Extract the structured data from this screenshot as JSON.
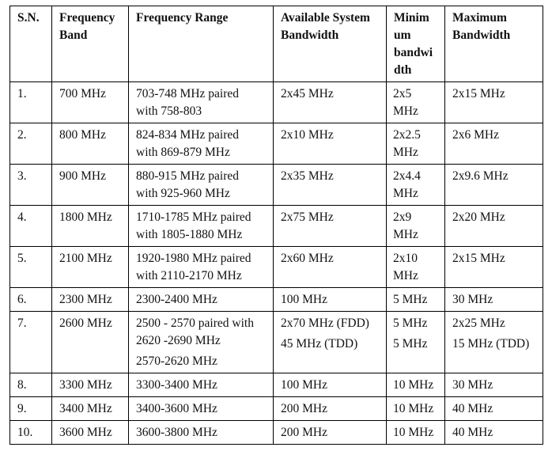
{
  "table": {
    "headers": [
      "S.N.",
      "Frequency Band",
      "Frequency Range",
      "Available System Bandwidth",
      "Minimum bandwidth",
      "Maximum Bandwidth"
    ],
    "header_lines": {
      "sn": [
        "S.N."
      ],
      "band": [
        "Frequency",
        "Band"
      ],
      "range": [
        "Frequency Range"
      ],
      "available": [
        "Available System",
        "Bandwidth"
      ],
      "minimum": [
        "Minim",
        "um",
        "bandwi",
        "dth"
      ],
      "maximum": [
        "Maximum",
        "Bandwidth"
      ]
    },
    "rows": [
      {
        "sn": "1.",
        "band": "700 MHz",
        "range": [
          "703-748 MHz paired",
          "with 758-803"
        ],
        "available": [
          "2x45 MHz"
        ],
        "minimum": [
          "2x5",
          "MHz"
        ],
        "maximum": [
          "2x15 MHz"
        ]
      },
      {
        "sn": "2.",
        "band": "800 MHz",
        "range": [
          "824-834 MHz paired",
          "with 869-879 MHz"
        ],
        "available": [
          "2x10 MHz"
        ],
        "minimum": [
          "2x2.5",
          "MHz"
        ],
        "maximum": [
          "2x6 MHz"
        ]
      },
      {
        "sn": "3.",
        "band": "900 MHz",
        "range": [
          "880-915 MHz paired",
          "with 925-960 MHz"
        ],
        "available": [
          "2x35 MHz"
        ],
        "minimum": [
          "2x4.4",
          "MHz"
        ],
        "maximum": [
          "2x9.6 MHz"
        ]
      },
      {
        "sn": "4.",
        "band": "1800 MHz",
        "range": [
          "1710-1785 MHz paired",
          "with 1805-1880 MHz"
        ],
        "available": [
          "2x75 MHz"
        ],
        "minimum": [
          "2x9",
          "MHz"
        ],
        "maximum": [
          "2x20 MHz"
        ]
      },
      {
        "sn": "5.",
        "band": "2100 MHz",
        "range": [
          "1920-1980 MHz paired",
          "with 2110-2170 MHz"
        ],
        "available": [
          "2x60 MHz"
        ],
        "minimum": [
          "2x10",
          "MHz"
        ],
        "maximum": [
          "2x15 MHz"
        ]
      },
      {
        "sn": "6.",
        "band": "2300 MHz",
        "range": [
          "2300-2400 MHz"
        ],
        "available": [
          "100 MHz"
        ],
        "minimum": [
          "5 MHz"
        ],
        "maximum": [
          "30 MHz"
        ]
      },
      {
        "sn": "7.",
        "band": "2600 MHz",
        "range": [
          "2500 - 2570 paired with",
          "2620 -2690 MHz",
          "2570-2620  MHz"
        ],
        "available": [
          "2x70 MHz (FDD)",
          "45 MHz (TDD)"
        ],
        "minimum": [
          "5 MHz",
          "5 MHz"
        ],
        "maximum": [
          "2x25 MHz",
          "15 MHz (TDD)"
        ]
      },
      {
        "sn": "8.",
        "band": "3300 MHz",
        "range": [
          "3300-3400 MHz"
        ],
        "available": [
          "100 MHz"
        ],
        "minimum": [
          "10 MHz"
        ],
        "maximum": [
          "30 MHz"
        ]
      },
      {
        "sn": "9.",
        "band": "3400 MHz",
        "range": [
          "3400-3600 MHz"
        ],
        "available": [
          "200 MHz"
        ],
        "minimum": [
          "10 MHz"
        ],
        "maximum": [
          "40 MHz"
        ]
      },
      {
        "sn": "10.",
        "band": "3600 MHz",
        "range": [
          "3600-3800 MHz"
        ],
        "available": [
          "200 MHz"
        ],
        "minimum": [
          "10 MHz"
        ],
        "maximum": [
          "40 MHz"
        ]
      }
    ]
  }
}
